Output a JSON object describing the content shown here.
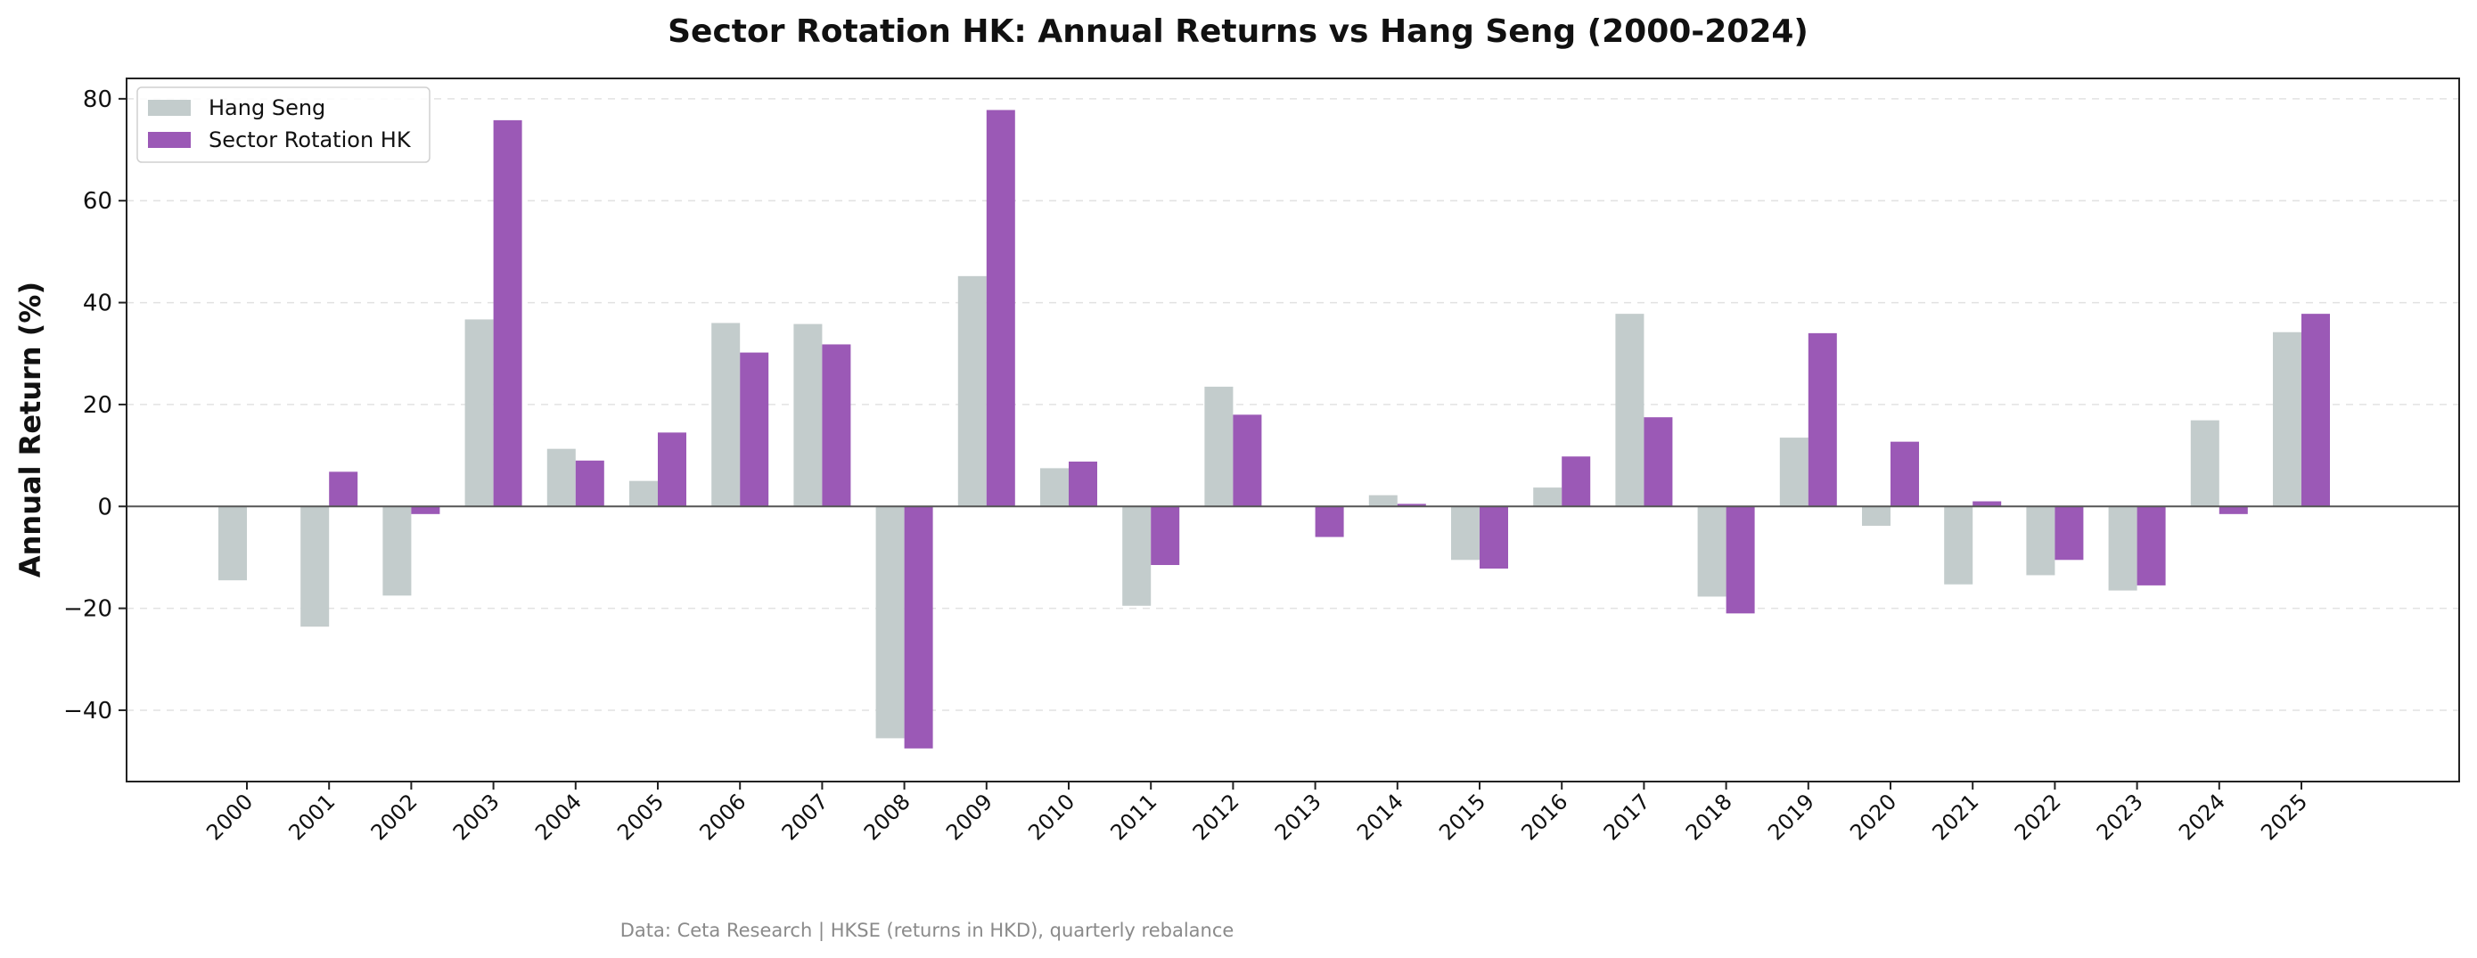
{
  "chart_data": {
    "type": "bar",
    "title": "Sector Rotation HK: Annual Returns vs Hang Seng (2000-2024)",
    "xlabel": "",
    "ylabel": "Annual Return (%)",
    "ylim": [
      -54,
      84
    ],
    "yticks": [
      -40,
      -20,
      0,
      20,
      40,
      60,
      80
    ],
    "ytick_labels": [
      "−40",
      "−20",
      "0",
      "20",
      "40",
      "60",
      "80"
    ],
    "grid": "horizontal dashed",
    "legend_position": "top-left",
    "categories": [
      "2000",
      "2001",
      "2002",
      "2003",
      "2004",
      "2005",
      "2006",
      "2007",
      "2008",
      "2009",
      "2010",
      "2011",
      "2012",
      "2013",
      "2014",
      "2015",
      "2016",
      "2017",
      "2018",
      "2019",
      "2020",
      "2021",
      "2022",
      "2023",
      "2024",
      "2025"
    ],
    "series": [
      {
        "name": "Hang Seng",
        "color": "#c3cccc",
        "values": [
          -14.5,
          -23.6,
          -17.5,
          36.7,
          11.3,
          5.0,
          36.0,
          35.8,
          -45.5,
          45.2,
          7.5,
          -19.5,
          23.5,
          0.0,
          2.2,
          -10.5,
          3.7,
          37.8,
          -17.7,
          13.5,
          -3.8,
          -15.3,
          -13.5,
          -16.5,
          16.9,
          34.2
        ]
      },
      {
        "name": "Sector Rotation HK",
        "color": "#9b59b6",
        "values": [
          0.0,
          6.8,
          -1.5,
          75.8,
          9.0,
          14.5,
          30.2,
          31.8,
          -47.5,
          77.8,
          8.8,
          -11.5,
          18.0,
          -6.0,
          0.5,
          -12.2,
          9.8,
          17.5,
          -21.0,
          34.0,
          12.7,
          1.0,
          -10.5,
          -15.5,
          -1.5,
          37.8
        ]
      }
    ]
  },
  "footnote": "Data: Ceta Research | HKSE (returns in HKD), quarterly rebalance"
}
